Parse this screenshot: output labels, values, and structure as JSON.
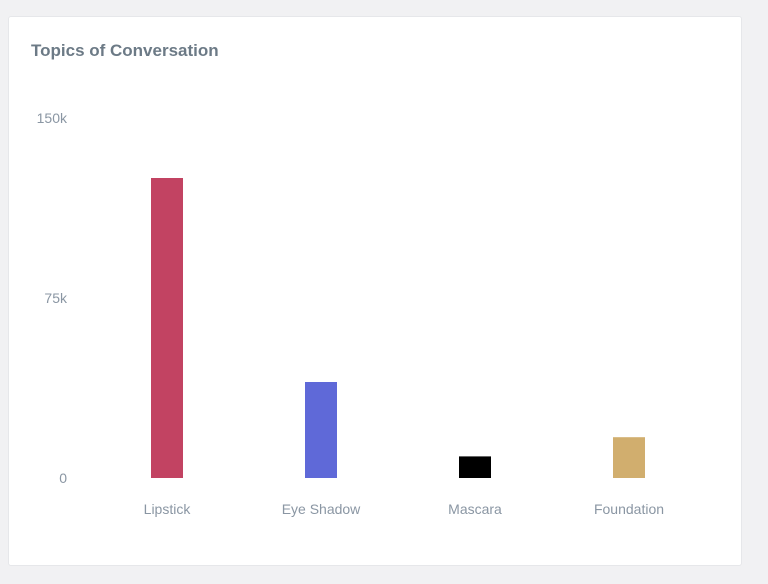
{
  "card": {
    "title": "Topics of Conversation"
  },
  "chart_data": {
    "type": "bar",
    "title": "Topics of Conversation",
    "categories": [
      "Lipstick",
      "Eye Shadow",
      "Mascara",
      "Foundation"
    ],
    "values": [
      125000,
      40000,
      9000,
      17000
    ],
    "colors": [
      "#c24362",
      "#5f69d8",
      "#000000",
      "#d1ae6e"
    ],
    "y_ticks": [
      {
        "value": 0,
        "label": "0"
      },
      {
        "value": 75000,
        "label": "75k"
      },
      {
        "value": 150000,
        "label": "150k"
      }
    ],
    "ylim": [
      0,
      150000
    ],
    "xlabel": "",
    "ylabel": "",
    "grid": false,
    "legend": "none"
  }
}
